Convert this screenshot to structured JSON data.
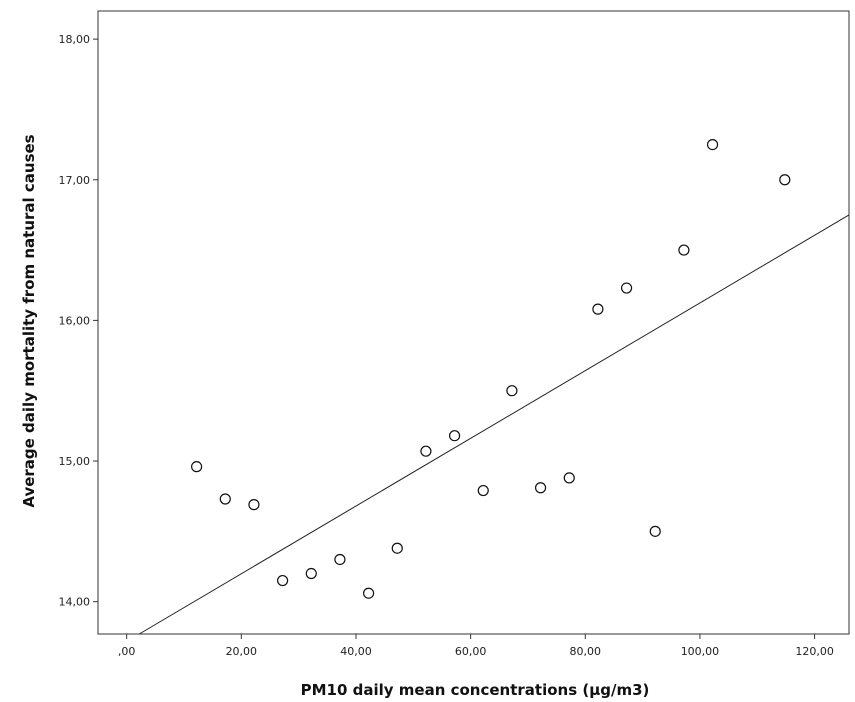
{
  "chart_data": {
    "type": "scatter",
    "title": "",
    "xlabel": "PM10 daily mean concentrations (µg/m3)",
    "ylabel": "Average daily mortality from natural causes",
    "xlim": [
      -5,
      126
    ],
    "ylim": [
      13.77,
      18.2
    ],
    "x_ticks": [
      0,
      20,
      40,
      60,
      80,
      100,
      120
    ],
    "x_tick_labels": [
      ",00",
      "20,00",
      "40,00",
      "60,00",
      "80,00",
      "100,00",
      "120,00"
    ],
    "y_ticks": [
      14,
      15,
      16,
      17,
      18
    ],
    "y_tick_labels": [
      "14,00",
      "15,00",
      "16,00",
      "17,00",
      "18,00"
    ],
    "grid": false,
    "points": [
      {
        "x": 12.2,
        "y": 14.96
      },
      {
        "x": 17.2,
        "y": 14.73
      },
      {
        "x": 22.2,
        "y": 14.69
      },
      {
        "x": 27.2,
        "y": 14.15
      },
      {
        "x": 32.2,
        "y": 14.2
      },
      {
        "x": 37.2,
        "y": 14.3
      },
      {
        "x": 42.2,
        "y": 14.06
      },
      {
        "x": 47.2,
        "y": 14.38
      },
      {
        "x": 52.2,
        "y": 15.07
      },
      {
        "x": 57.2,
        "y": 15.18
      },
      {
        "x": 62.2,
        "y": 14.79
      },
      {
        "x": 67.2,
        "y": 15.5
      },
      {
        "x": 72.2,
        "y": 14.81
      },
      {
        "x": 77.2,
        "y": 14.88
      },
      {
        "x": 82.2,
        "y": 16.08
      },
      {
        "x": 87.2,
        "y": 16.23
      },
      {
        "x": 92.2,
        "y": 14.5
      },
      {
        "x": 97.2,
        "y": 16.5
      },
      {
        "x": 102.2,
        "y": 17.25
      },
      {
        "x": 114.8,
        "y": 17.0
      }
    ],
    "fit_line": {
      "x": [
        2.2,
        126
      ],
      "y": [
        13.77,
        16.75
      ]
    }
  }
}
